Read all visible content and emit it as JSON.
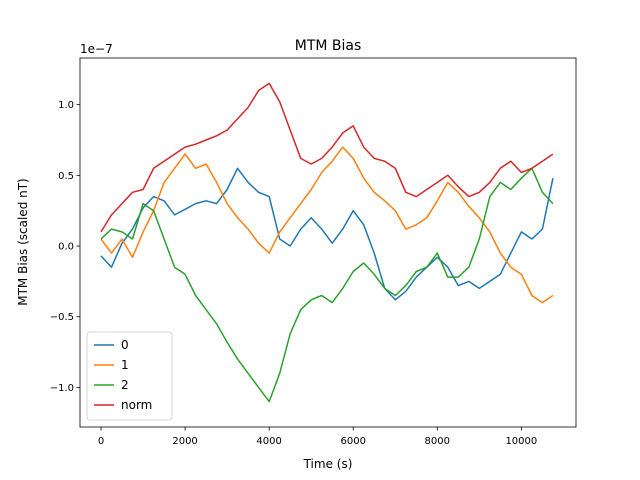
{
  "chart_data": {
    "type": "line",
    "title": "MTM Bias",
    "xlabel": "Time (s)",
    "ylabel": "MTM Bias (scaled nT)",
    "offset_text": "1e−7",
    "xlim": [
      -500,
      11300
    ],
    "ylim": [
      -1.28,
      1.33
    ],
    "x_ticks": [
      {
        "value": 0,
        "label": "0"
      },
      {
        "value": 2000,
        "label": "2000"
      },
      {
        "value": 4000,
        "label": "4000"
      },
      {
        "value": 6000,
        "label": "6000"
      },
      {
        "value": 8000,
        "label": "8000"
      },
      {
        "value": 10000,
        "label": "10000"
      }
    ],
    "y_ticks": [
      {
        "value": -1.0,
        "label": "−1.0"
      },
      {
        "value": -0.5,
        "label": "−0.5"
      },
      {
        "value": 0.0,
        "label": "0.0"
      },
      {
        "value": 0.5,
        "label": "0.5"
      },
      {
        "value": 1.0,
        "label": "1.0"
      }
    ],
    "grid": false,
    "legend_position": "lower-left",
    "x": [
      0,
      250,
      500,
      750,
      1000,
      1250,
      1500,
      1750,
      2000,
      2250,
      2500,
      2750,
      3000,
      3250,
      3500,
      3750,
      4000,
      4250,
      4500,
      4750,
      5000,
      5250,
      5500,
      5750,
      6000,
      6250,
      6500,
      6750,
      7000,
      7250,
      7500,
      7750,
      8000,
      8250,
      8500,
      8750,
      9000,
      9250,
      9500,
      9750,
      10000,
      10250,
      10500,
      10750
    ],
    "series": [
      {
        "name": "0",
        "color": "#1f77b4",
        "values": [
          -0.07,
          -0.15,
          0.02,
          0.12,
          0.27,
          0.35,
          0.32,
          0.22,
          0.26,
          0.3,
          0.32,
          0.3,
          0.4,
          0.55,
          0.45,
          0.38,
          0.35,
          0.05,
          0.0,
          0.12,
          0.2,
          0.12,
          0.02,
          0.12,
          0.25,
          0.15,
          -0.05,
          -0.3,
          -0.38,
          -0.32,
          -0.22,
          -0.15,
          -0.08,
          -0.15,
          -0.28,
          -0.25,
          -0.3,
          -0.25,
          -0.2,
          -0.05,
          0.1,
          0.05,
          0.12,
          0.48
        ]
      },
      {
        "name": "1",
        "color": "#ff7f0e",
        "values": [
          0.05,
          -0.05,
          0.05,
          -0.08,
          0.1,
          0.25,
          0.45,
          0.55,
          0.65,
          0.55,
          0.58,
          0.45,
          0.3,
          0.2,
          0.12,
          0.02,
          -0.05,
          0.1,
          0.2,
          0.3,
          0.4,
          0.52,
          0.6,
          0.7,
          0.62,
          0.48,
          0.38,
          0.32,
          0.25,
          0.12,
          0.15,
          0.2,
          0.32,
          0.45,
          0.38,
          0.28,
          0.2,
          0.1,
          -0.05,
          -0.15,
          -0.2,
          -0.35,
          -0.4,
          -0.35
        ]
      },
      {
        "name": "2",
        "color": "#2ca02c",
        "values": [
          0.05,
          0.12,
          0.1,
          0.05,
          0.3,
          0.25,
          0.05,
          -0.15,
          -0.2,
          -0.35,
          -0.45,
          -0.55,
          -0.68,
          -0.8,
          -0.9,
          -1.0,
          -1.1,
          -0.9,
          -0.62,
          -0.45,
          -0.38,
          -0.35,
          -0.4,
          -0.3,
          -0.18,
          -0.12,
          -0.2,
          -0.3,
          -0.35,
          -0.28,
          -0.18,
          -0.15,
          -0.05,
          -0.22,
          -0.22,
          -0.15,
          0.05,
          0.35,
          0.45,
          0.4,
          0.48,
          0.55,
          0.38,
          0.3
        ]
      },
      {
        "name": "norm",
        "color": "#d62728",
        "values": [
          0.1,
          0.22,
          0.3,
          0.38,
          0.4,
          0.55,
          0.6,
          0.65,
          0.7,
          0.72,
          0.75,
          0.78,
          0.82,
          0.9,
          0.98,
          1.1,
          1.15,
          1.02,
          0.82,
          0.62,
          0.58,
          0.62,
          0.7,
          0.8,
          0.85,
          0.7,
          0.62,
          0.6,
          0.55,
          0.38,
          0.35,
          0.4,
          0.45,
          0.5,
          0.42,
          0.35,
          0.38,
          0.45,
          0.55,
          0.6,
          0.52,
          0.55,
          0.6,
          0.65
        ]
      }
    ]
  }
}
